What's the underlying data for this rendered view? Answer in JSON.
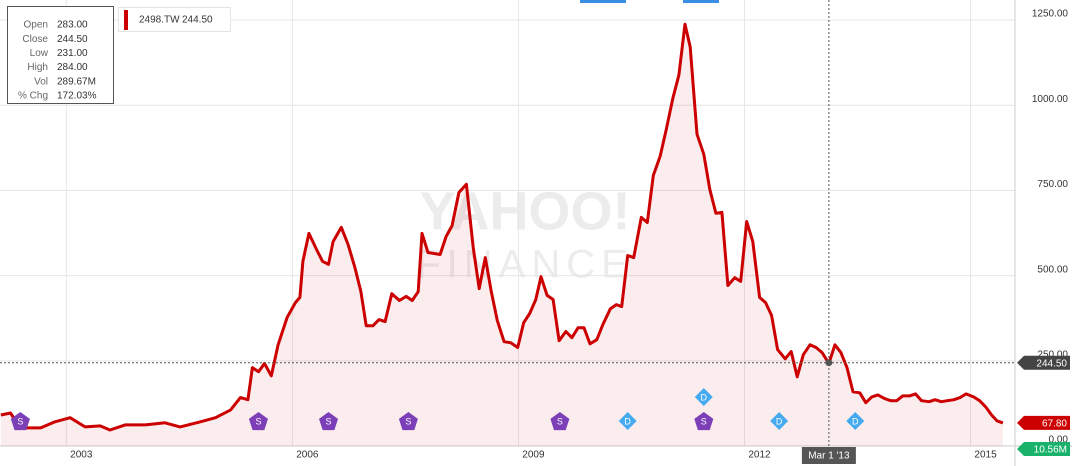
{
  "chart_data": {
    "type": "line",
    "watermark": [
      "YAHOO!",
      "FINANCE"
    ],
    "tooltip": [
      [
        "Open",
        "283.00"
      ],
      [
        "Close",
        "244.50"
      ],
      [
        "Low",
        "231.00"
      ],
      [
        "High",
        "284.00"
      ],
      [
        "Vol",
        "289.67M"
      ],
      [
        "% Chg",
        "172.03%"
      ]
    ],
    "legend_value": "244.50",
    "x": [
      2002.13,
      2002.26,
      2002.39,
      2002.66,
      2002.85,
      2003.05,
      2003.25,
      2003.45,
      2003.58,
      2003.78,
      2004.05,
      2004.31,
      2004.51,
      2004.78,
      2004.98,
      2005.18,
      2005.31,
      2005.41,
      2005.47,
      2005.55,
      2005.63,
      2005.72,
      2005.81,
      2005.93,
      2006.04,
      2006.1,
      2006.14,
      2006.22,
      2006.32,
      2006.4,
      2006.48,
      2006.54,
      2006.65,
      2006.74,
      2006.83,
      2006.91,
      2006.98,
      2007.07,
      2007.15,
      2007.23,
      2007.32,
      2007.42,
      2007.51,
      2007.59,
      2007.67,
      2007.72,
      2007.8,
      2007.96,
      2008.04,
      2008.12,
      2008.21,
      2008.31,
      2008.4,
      2008.48,
      2008.56,
      2008.64,
      2008.72,
      2008.81,
      2008.9,
      2008.99,
      2009.07,
      2009.15,
      2009.23,
      2009.3,
      2009.38,
      2009.46,
      2009.54,
      2009.63,
      2009.71,
      2009.79,
      2009.87,
      2009.95,
      2010.04,
      2010.12,
      2010.22,
      2010.3,
      2010.37,
      2010.45,
      2010.53,
      2010.63,
      2010.71,
      2010.79,
      2010.88,
      2010.96,
      2011.05,
      2011.13,
      2011.21,
      2011.28,
      2011.37,
      2011.46,
      2011.54,
      2011.62,
      2011.7,
      2011.78,
      2011.87,
      2011.95,
      2012.03,
      2012.11,
      2012.2,
      2012.28,
      2012.36,
      2012.44,
      2012.54,
      2012.62,
      2012.7,
      2012.78,
      2012.87,
      2012.95,
      2013.03,
      2013.12,
      2013.2,
      2013.28,
      2013.36,
      2013.44,
      2013.53,
      2013.61,
      2013.69,
      2013.77,
      2013.86,
      2013.94,
      2014.02,
      2014.1,
      2014.19,
      2014.27,
      2014.35,
      2014.45,
      2014.53,
      2014.61,
      2014.69,
      2014.78,
      2014.86,
      2014.94,
      2015.04,
      2015.12,
      2015.2,
      2015.28,
      2015.35,
      2015.43
    ],
    "series": [
      {
        "name": "2498.TW",
        "color": "#cc0000",
        "values": [
          91,
          97,
          53,
          53,
          71,
          83,
          56,
          59,
          47,
          62,
          62,
          68,
          56,
          71,
          83,
          106,
          142,
          136,
          230,
          218,
          242,
          206,
          297,
          377,
          421,
          436,
          542,
          624,
          577,
          542,
          533,
          600,
          642,
          591,
          524,
          453,
          353,
          353,
          371,
          365,
          447,
          427,
          439,
          427,
          453,
          624,
          568,
          562,
          615,
          647,
          744,
          768,
          583,
          462,
          553,
          453,
          368,
          306,
          303,
          289,
          362,
          389,
          430,
          497,
          442,
          430,
          309,
          336,
          318,
          347,
          347,
          300,
          312,
          356,
          403,
          415,
          409,
          559,
          553,
          671,
          656,
          794,
          850,
          927,
          1021,
          1089,
          1238,
          1171,
          915,
          856,
          753,
          683,
          686,
          471,
          494,
          483,
          659,
          600,
          436,
          421,
          383,
          283,
          256,
          277,
          203,
          268,
          297,
          289,
          274,
          242,
          297,
          274,
          230,
          159,
          156,
          127,
          144,
          150,
          139,
          133,
          133,
          147,
          147,
          153,
          133,
          130,
          136,
          130,
          133,
          136,
          142,
          153,
          144,
          133,
          115,
          91,
          74,
          67.8
        ]
      }
    ],
    "xlim": [
      2002.12,
      2015.59
    ],
    "xticks": [
      2003,
      2006,
      2009,
      2012,
      2015
    ],
    "ylim": [
      0,
      1309
    ],
    "yticks": [
      {
        "value": 0,
        "label": "0.00"
      },
      {
        "value": 250,
        "label": "250.00"
      },
      {
        "value": 500,
        "label": "500.00"
      },
      {
        "value": 750,
        "label": "750.00"
      },
      {
        "value": 1000,
        "label": "1000.00"
      },
      {
        "value": 1250,
        "label": "1250.00"
      }
    ],
    "grid": true,
    "events": [
      {
        "label": "S",
        "x": 2002.39
      },
      {
        "label": "S",
        "x": 2005.55
      },
      {
        "label": "S",
        "x": 2006.48
      },
      {
        "label": "S",
        "x": 2007.54
      },
      {
        "label": "S",
        "x": 2009.55
      },
      {
        "label": "D",
        "x": 2010.45
      },
      {
        "label": "S",
        "x": 2011.46
      },
      {
        "label": "D",
        "x": 2011.46
      },
      {
        "label": "D",
        "x": 2012.46
      },
      {
        "label": "D",
        "x": 2013.47
      }
    ],
    "crosshair": {
      "x": 2013.12,
      "x_label": "Mar 1 '13",
      "value": 244.5,
      "value_label": "244.50"
    },
    "last_price": {
      "value": 67.8,
      "label": "67.80"
    },
    "volume_tag": "10.56M"
  }
}
